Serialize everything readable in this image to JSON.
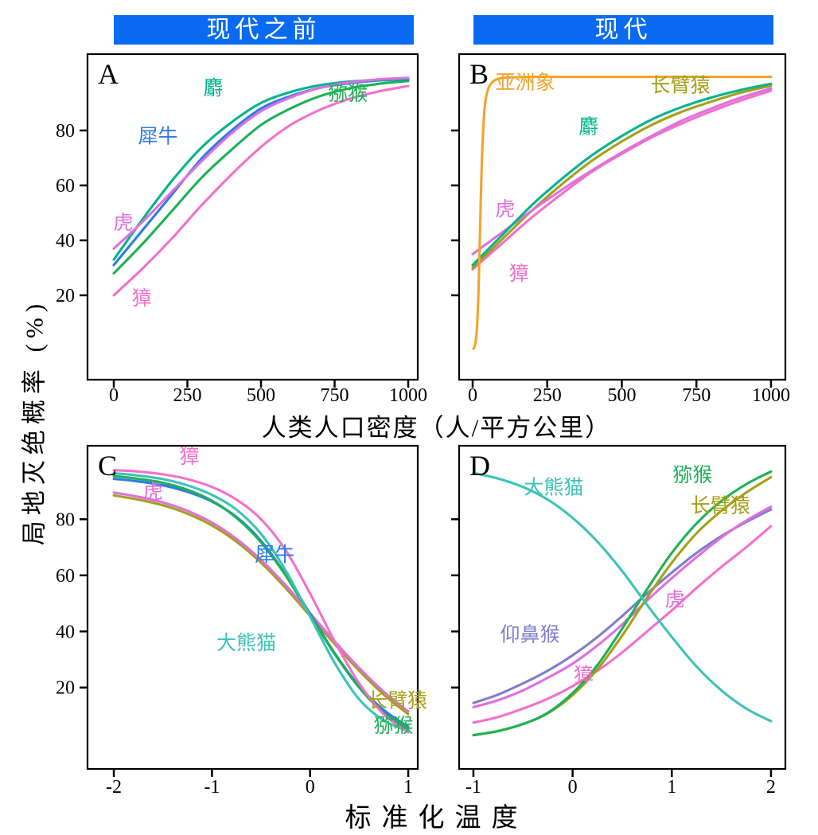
{
  "header": {
    "left": "现代之前",
    "right": "现代"
  },
  "axes": {
    "y_label": "局地灭绝概率 (%)",
    "x_label_top": "人类人口密度（人/平方公里）",
    "x_label_bottom": "标准化温度"
  },
  "colors": {
    "header_bg": "#0A6BF2",
    "header_text": "#FFFFFF",
    "axis": "#000000",
    "species": {
      "she": "#00B48C",
      "mihou": "#1EB155",
      "xiniu": "#2E7BE8",
      "hu": "#E070DE",
      "zhang": "#F470CB",
      "yazhouxiang": "#F2A42C",
      "changbiyuan": "#A4A01A",
      "daxiongmao": "#3CC3B7",
      "yangbihou": "#7E7ECC"
    }
  },
  "chart_data": [
    {
      "id": "A",
      "letter": "A",
      "type": "line",
      "xlabel": "人类人口密度（人/平方公里）",
      "ylabel": "局地灭绝概率 (%)",
      "xlim": [
        0,
        1000
      ],
      "ylim": [
        0,
        100
      ],
      "xticks": [
        0,
        250,
        500,
        750,
        1000
      ],
      "yticks": [
        20,
        40,
        60,
        80
      ],
      "show_ytick_labels": true,
      "series": [
        {
          "key": "zhang",
          "name": "獐",
          "color": "#F470CB",
          "x": [
            0,
            100,
            200,
            300,
            400,
            500,
            600,
            700,
            800,
            900,
            1000
          ],
          "y": [
            20,
            30,
            41,
            53,
            64,
            74,
            82,
            87.5,
            91.5,
            94.2,
            96.2
          ]
        },
        {
          "key": "mihou",
          "name": "猕猴",
          "color": "#1EB155",
          "x": [
            0,
            100,
            200,
            300,
            400,
            500,
            600,
            700,
            800,
            900,
            1000
          ],
          "y": [
            28,
            39,
            51,
            63,
            73,
            82,
            88,
            92.5,
            95.3,
            97,
            98
          ]
        },
        {
          "key": "xiniu",
          "name": "犀牛",
          "color": "#2E7BE8",
          "x": [
            0,
            100,
            200,
            300,
            400,
            500,
            600,
            700,
            800,
            900,
            1000
          ],
          "y": [
            31,
            44,
            57,
            70,
            80,
            88,
            92.5,
            95.5,
            97.2,
            98.2,
            98.6
          ]
        },
        {
          "key": "she",
          "name": "麝",
          "color": "#00B48C",
          "x": [
            0,
            100,
            200,
            300,
            400,
            500,
            600,
            700,
            800,
            900,
            1000
          ],
          "y": [
            33,
            48,
            62,
            74,
            83,
            90,
            94,
            96.5,
            97.8,
            98.4,
            98.8
          ]
        },
        {
          "key": "hu",
          "name": "虎",
          "color": "#E070DE",
          "x": [
            0,
            100,
            200,
            300,
            400,
            500,
            600,
            700,
            800,
            900,
            1000
          ],
          "y": [
            37,
            47,
            58,
            69,
            79,
            87,
            92,
            95.5,
            97.5,
            98.6,
            99.2
          ]
        }
      ],
      "labels": [
        {
          "key": "she",
          "text": "麝",
          "color": "#00B48C",
          "x": 338,
          "y": 93
        },
        {
          "key": "mihou",
          "text": "猕猴",
          "color": "#1EB155",
          "x": 795,
          "y": 91
        },
        {
          "key": "xiniu",
          "text": "犀牛",
          "color": "#2E7BE8",
          "x": 150,
          "y": 75.5
        },
        {
          "key": "hu",
          "text": "虎",
          "color": "#E070DE",
          "x": 32,
          "y": 44
        },
        {
          "key": "zhang",
          "text": "獐",
          "color": "#F470CB",
          "x": 95,
          "y": 16.5
        }
      ]
    },
    {
      "id": "B",
      "letter": "B",
      "type": "line",
      "xlabel": "人类人口密度（人/平方公里）",
      "ylabel": "局地灭绝概率 (%)",
      "xlim": [
        0,
        1000
      ],
      "ylim": [
        0,
        100
      ],
      "xticks": [
        0,
        250,
        500,
        750,
        1000
      ],
      "yticks": [
        20,
        40,
        60,
        80
      ],
      "show_ytick_labels": false,
      "series": [
        {
          "key": "zhang",
          "name": "獐",
          "color": "#F470CB",
          "x": [
            0,
            100,
            200,
            300,
            400,
            500,
            600,
            700,
            800,
            900,
            1000
          ],
          "y": [
            29.5,
            39,
            48.5,
            57,
            65,
            71.5,
            77.5,
            82.5,
            87,
            91,
            94.5
          ]
        },
        {
          "key": "changbiyuan",
          "name": "长臂猿",
          "color": "#A4A01A",
          "x": [
            0,
            100,
            200,
            300,
            400,
            500,
            600,
            700,
            800,
            900,
            1000
          ],
          "y": [
            30,
            40.5,
            51,
            60.5,
            69,
            76,
            82,
            86.8,
            90.5,
            93.8,
            96.3
          ]
        },
        {
          "key": "hu",
          "name": "虎",
          "color": "#E070DE",
          "x": [
            0,
            100,
            200,
            300,
            400,
            500,
            600,
            700,
            800,
            900,
            1000
          ],
          "y": [
            35,
            43,
            51,
            58.5,
            65.5,
            72,
            78,
            83.5,
            88,
            92,
            95.3
          ]
        },
        {
          "key": "she",
          "name": "麝",
          "color": "#00B48C",
          "x": [
            0,
            100,
            200,
            300,
            400,
            500,
            600,
            700,
            800,
            900,
            1000
          ],
          "y": [
            31,
            42,
            53,
            62.5,
            71,
            78,
            84,
            88.5,
            92,
            94.8,
            97
          ]
        },
        {
          "key": "yazhouxiang",
          "name": "亚洲象",
          "color": "#F2A42C",
          "x": [
            3,
            8,
            13,
            18,
            23,
            28,
            33,
            40,
            50,
            65,
            85,
            120,
            200,
            350,
            500,
            750,
            1000
          ],
          "y": [
            0.5,
            2,
            6,
            16,
            35,
            58,
            75,
            88,
            94.5,
            97.5,
            98.8,
            99.3,
            99.5,
            99.5,
            99.5,
            99.5,
            99.5
          ]
        }
      ],
      "labels": [
        {
          "key": "yazhouxiang",
          "text": "亚洲象",
          "color": "#F2A42C",
          "x": 176,
          "y": 95
        },
        {
          "key": "changbiyuan",
          "text": "长臂猿",
          "color": "#A4A01A",
          "x": 696,
          "y": 94
        },
        {
          "key": "she",
          "text": "麝",
          "color": "#00B48C",
          "x": 389,
          "y": 79
        },
        {
          "key": "hu",
          "text": "虎",
          "color": "#E070DE",
          "x": 109,
          "y": 49
        },
        {
          "key": "zhang",
          "text": "獐",
          "color": "#F470CB",
          "x": 155,
          "y": 25.5
        }
      ]
    },
    {
      "id": "C",
      "letter": "C",
      "type": "line",
      "xlabel": "标准化温度",
      "ylabel": "局地灭绝概率 (%)",
      "xlim": [
        -2,
        1
      ],
      "ylim": [
        0,
        100
      ],
      "xticks": [
        -2,
        -1,
        0,
        1
      ],
      "yticks": [
        20,
        40,
        60,
        80
      ],
      "show_ytick_labels": true,
      "series": [
        {
          "key": "changbiyuan",
          "name": "长臂猿",
          "color": "#A4A01A",
          "x": [
            -2,
            -1.75,
            -1.5,
            -1.25,
            -1,
            -0.75,
            -0.5,
            -0.25,
            0,
            0.25,
            0.5,
            0.75,
            1
          ],
          "y": [
            88.5,
            87,
            85,
            82,
            77.8,
            72,
            64.5,
            55.5,
            45.5,
            35.5,
            26,
            17.5,
            10.5
          ]
        },
        {
          "key": "hu",
          "name": "虎",
          "color": "#E070DE",
          "x": [
            -2,
            -1.75,
            -1.5,
            -1.25,
            -1,
            -0.75,
            -0.5,
            -0.25,
            0,
            0.25,
            0.5,
            0.75,
            1
          ],
          "y": [
            89.5,
            88,
            86,
            83,
            78.8,
            73,
            65.5,
            56.5,
            46.5,
            36.5,
            27,
            18.5,
            11.5
          ]
        },
        {
          "key": "xiniu",
          "name": "犀牛",
          "color": "#2E7BE8",
          "x": [
            -2,
            -1.75,
            -1.5,
            -1.25,
            -1,
            -0.75,
            -0.5,
            -0.25,
            0,
            0.25,
            0.5,
            0.75,
            1
          ],
          "y": [
            94.4,
            93.5,
            92.1,
            89.8,
            86.3,
            80.8,
            72.3,
            60.3,
            46.3,
            32.3,
            20.5,
            12,
            6
          ]
        },
        {
          "key": "mihou",
          "name": "猕猴",
          "color": "#1EB155",
          "x": [
            -2,
            -1.75,
            -1.5,
            -1.25,
            -1,
            -0.75,
            -0.5,
            -0.25,
            0,
            0.25,
            0.5,
            0.75,
            1
          ],
          "y": [
            95.4,
            94.4,
            93,
            90.5,
            86.6,
            80.5,
            71.8,
            60,
            45.8,
            32,
            20,
            11,
            5
          ]
        },
        {
          "key": "daxiongmao",
          "name": "大熊猫",
          "color": "#3CC3B7",
          "x": [
            -2,
            -1.75,
            -1.5,
            -1.25,
            -1,
            -0.75,
            -0.5,
            -0.25,
            0,
            0.25,
            0.5,
            0.75,
            1
          ],
          "y": [
            96.4,
            95.6,
            94.3,
            92.1,
            88.7,
            83.4,
            74.8,
            61.8,
            45.3,
            28.8,
            15.8,
            8.3,
            4.5
          ]
        },
        {
          "key": "zhang",
          "name": "獐",
          "color": "#F470CB",
          "x": [
            -2,
            -1.75,
            -1.5,
            -1.25,
            -1,
            -0.75,
            -0.5,
            -0.25,
            0,
            0.25,
            0.5,
            0.75,
            1
          ],
          "y": [
            97.5,
            97,
            96,
            94.3,
            91.5,
            87,
            80,
            69,
            53.5,
            36.5,
            21.5,
            10.5,
            4
          ]
        }
      ],
      "labels": [
        {
          "key": "zhang",
          "text": "獐",
          "color": "#F470CB",
          "x": -1.23,
          "y": 100
        },
        {
          "key": "hu",
          "text": "虎",
          "color": "#E070DE",
          "x": -1.6,
          "y": 87.5
        },
        {
          "key": "xiniu",
          "text": "犀牛",
          "color": "#2E7BE8",
          "x": -0.36,
          "y": 65
        },
        {
          "key": "daxiongmao",
          "text": "大熊猫",
          "color": "#3CC3B7",
          "x": -0.65,
          "y": 33.5
        },
        {
          "key": "changbiyuan",
          "text": "长臂猿",
          "color": "#A4A01A",
          "x": 0.89,
          "y": 13
        },
        {
          "key": "mihou",
          "text": "猕猴",
          "color": "#1EB155",
          "x": 0.85,
          "y": 4
        }
      ]
    },
    {
      "id": "D",
      "letter": "D",
      "type": "line",
      "xlabel": "标准化温度",
      "ylabel": "局地灭绝概率 (%)",
      "xlim": [
        -1,
        2
      ],
      "ylim": [
        0,
        100
      ],
      "xticks": [
        -1,
        0,
        1,
        2
      ],
      "yticks": [
        20,
        40,
        60,
        80
      ],
      "show_ytick_labels": false,
      "series": [
        {
          "key": "zhang",
          "name": "獐",
          "color": "#F470CB",
          "x": [
            -1,
            -0.75,
            -0.5,
            -0.25,
            0,
            0.25,
            0.5,
            0.75,
            1,
            1.25,
            1.5,
            1.75,
            2
          ],
          "y": [
            7.5,
            9.5,
            12.5,
            16,
            20.5,
            26,
            32.5,
            40,
            47.5,
            55.5,
            63,
            70,
            77.5
          ]
        },
        {
          "key": "yangbihou",
          "name": "仰鼻猴",
          "color": "#7E7ECC",
          "x": [
            -1,
            -0.75,
            -0.5,
            -0.25,
            0,
            0.25,
            0.5,
            0.75,
            1,
            1.25,
            1.5,
            1.75,
            2
          ],
          "y": [
            14.5,
            17.5,
            21.5,
            26,
            31.5,
            38,
            45.5,
            53.5,
            61,
            68,
            74,
            79,
            83.5
          ]
        },
        {
          "key": "hu",
          "name": "虎",
          "color": "#E070DE",
          "x": [
            -1,
            -0.75,
            -0.5,
            -0.25,
            0,
            0.25,
            0.5,
            0.75,
            1,
            1.25,
            1.5,
            1.75,
            2
          ],
          "y": [
            13,
            15.5,
            19,
            23.5,
            28.5,
            35,
            42.5,
            51,
            59,
            66.5,
            73.5,
            79.5,
            84.5
          ]
        },
        {
          "key": "changbiyuan",
          "name": "长臂猿",
          "color": "#A4A01A",
          "x": [
            -1,
            -0.75,
            -0.5,
            -0.25,
            0,
            0.25,
            0.5,
            0.75,
            1,
            1.25,
            1.5,
            1.75,
            2
          ],
          "y": [
            3,
            4.5,
            7,
            10.8,
            17.3,
            26.5,
            38.5,
            52,
            64.5,
            75,
            83,
            89.5,
            95
          ]
        },
        {
          "key": "mihou",
          "name": "猕猴",
          "color": "#1EB155",
          "x": [
            -1,
            -0.75,
            -0.5,
            -0.25,
            0,
            0.25,
            0.5,
            0.75,
            1,
            1.25,
            1.5,
            1.75,
            2
          ],
          "y": [
            3,
            4.5,
            7,
            11,
            18,
            28,
            41,
            55,
            68,
            78.5,
            86.5,
            92.5,
            97
          ]
        },
        {
          "key": "daxiongmao",
          "name": "大熊猫",
          "color": "#3CC3B7",
          "x": [
            -1,
            -0.75,
            -0.5,
            -0.25,
            0,
            0.25,
            0.5,
            0.75,
            1,
            1.25,
            1.5,
            1.75,
            2
          ],
          "y": [
            96.5,
            94.5,
            91.5,
            87,
            80.5,
            72,
            61.5,
            49.5,
            38,
            27.5,
            19,
            12.5,
            8
          ]
        }
      ],
      "labels": [
        {
          "key": "mihou",
          "text": "猕猴",
          "color": "#1EB155",
          "x": 1.21,
          "y": 93.5
        },
        {
          "key": "daxiongmao",
          "text": "大熊猫",
          "color": "#3CC3B7",
          "x": -0.19,
          "y": 89
        },
        {
          "key": "changbiyuan",
          "text": "长臂猿",
          "color": "#A4A01A",
          "x": 1.49,
          "y": 82.5
        },
        {
          "key": "hu",
          "text": "虎",
          "color": "#E070DE",
          "x": 1.03,
          "y": 49
        },
        {
          "key": "yangbihou",
          "text": "仰鼻猴",
          "color": "#7E7ECC",
          "x": -0.43,
          "y": 36.5
        },
        {
          "key": "zhang",
          "text": "獐",
          "color": "#F470CB",
          "x": 0.11,
          "y": 22
        }
      ]
    }
  ]
}
